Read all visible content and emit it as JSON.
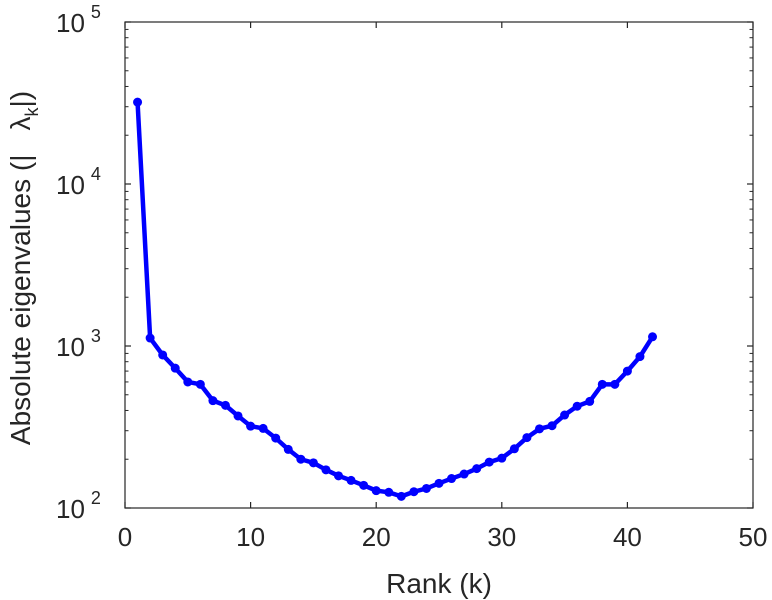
{
  "chart_data": {
    "type": "line",
    "xlabel": "Rank (k)",
    "ylabel": {
      "prefix": "Absolute eigenvalues (|",
      "symbol": "λ",
      "subscript": "k",
      "suffix": "|)"
    },
    "xlim": [
      0,
      50
    ],
    "ylim": [
      100,
      100000
    ],
    "yscale": "log",
    "grid": false,
    "xticks": [
      0,
      10,
      20,
      30,
      40,
      50
    ],
    "yticks": [
      {
        "value": 100,
        "base": "10",
        "exp": "2"
      },
      {
        "value": 1000,
        "base": "10",
        "exp": "3"
      },
      {
        "value": 10000,
        "base": "10",
        "exp": "4"
      },
      {
        "value": 100000,
        "base": "10",
        "exp": "5"
      }
    ],
    "series": [
      {
        "color": "#0000ff",
        "marker": "dot",
        "x": [
          1,
          2,
          3,
          4,
          5,
          6,
          7,
          8,
          9,
          10,
          11,
          12,
          13,
          14,
          15,
          16,
          17,
          18,
          19,
          20,
          21,
          22,
          23,
          24,
          25,
          26,
          27,
          28,
          29,
          30,
          31,
          32,
          33,
          34,
          35,
          36,
          37,
          38,
          39,
          40,
          41,
          42
        ],
        "y": [
          32000,
          1120,
          880,
          730,
          600,
          580,
          460,
          430,
          370,
          320,
          310,
          270,
          230,
          200,
          190,
          172,
          158,
          148,
          138,
          128,
          125,
          118,
          126,
          132,
          142,
          152,
          162,
          175,
          192,
          203,
          232,
          272,
          308,
          322,
          375,
          425,
          455,
          580,
          580,
          700,
          860,
          1140
        ]
      }
    ]
  }
}
